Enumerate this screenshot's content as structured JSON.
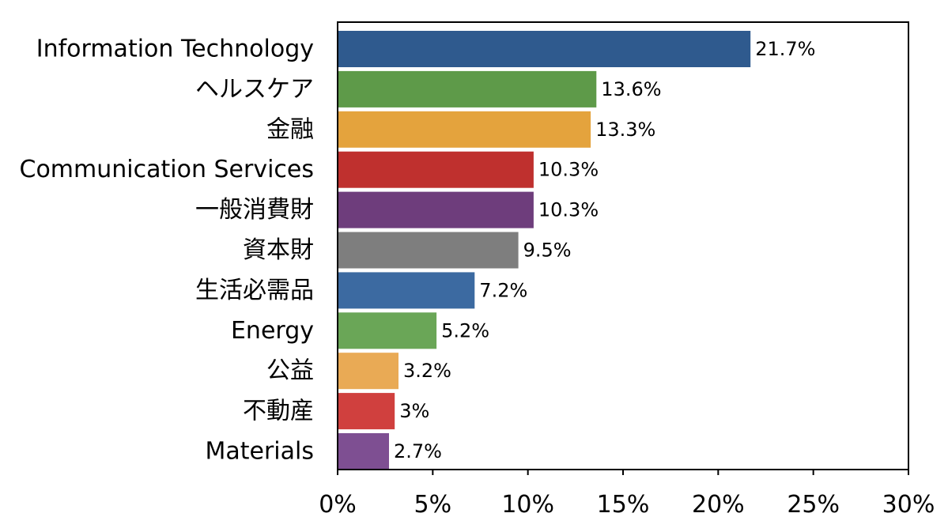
{
  "chart_data": {
    "type": "bar",
    "orientation": "horizontal",
    "categories": [
      "Information Technology",
      "ヘルスケア",
      "金融",
      "Communication Services",
      "一般消費財",
      "資本財",
      "生活必需品",
      "Energy",
      "公益",
      "不動産",
      "Materials"
    ],
    "values": [
      21.7,
      13.6,
      13.3,
      10.3,
      10.3,
      9.5,
      7.2,
      5.2,
      3.2,
      3.0,
      2.7
    ],
    "value_labels": [
      "21.7%",
      "13.6%",
      "13.3%",
      "10.3%",
      "10.3%",
      "9.5%",
      "7.2%",
      "5.2%",
      "3.2%",
      "3%",
      "2.7%"
    ],
    "bar_colors": [
      "#2f5a8e",
      "#5e9a49",
      "#e4a33d",
      "#bf302e",
      "#6e3d7c",
      "#7e7e7e",
      "#3c6aa1",
      "#6aa657",
      "#e9aa55",
      "#d0403e",
      "#7e4f92"
    ],
    "xlim": [
      0,
      30
    ],
    "x_ticks": [
      0,
      5,
      10,
      15,
      20,
      25,
      30
    ],
    "x_tick_labels": [
      "0%",
      "5%",
      "10%",
      "15%",
      "20%",
      "25%",
      "30%"
    ],
    "title": "",
    "xlabel": "",
    "ylabel": "",
    "grid": false,
    "legend": false
  }
}
